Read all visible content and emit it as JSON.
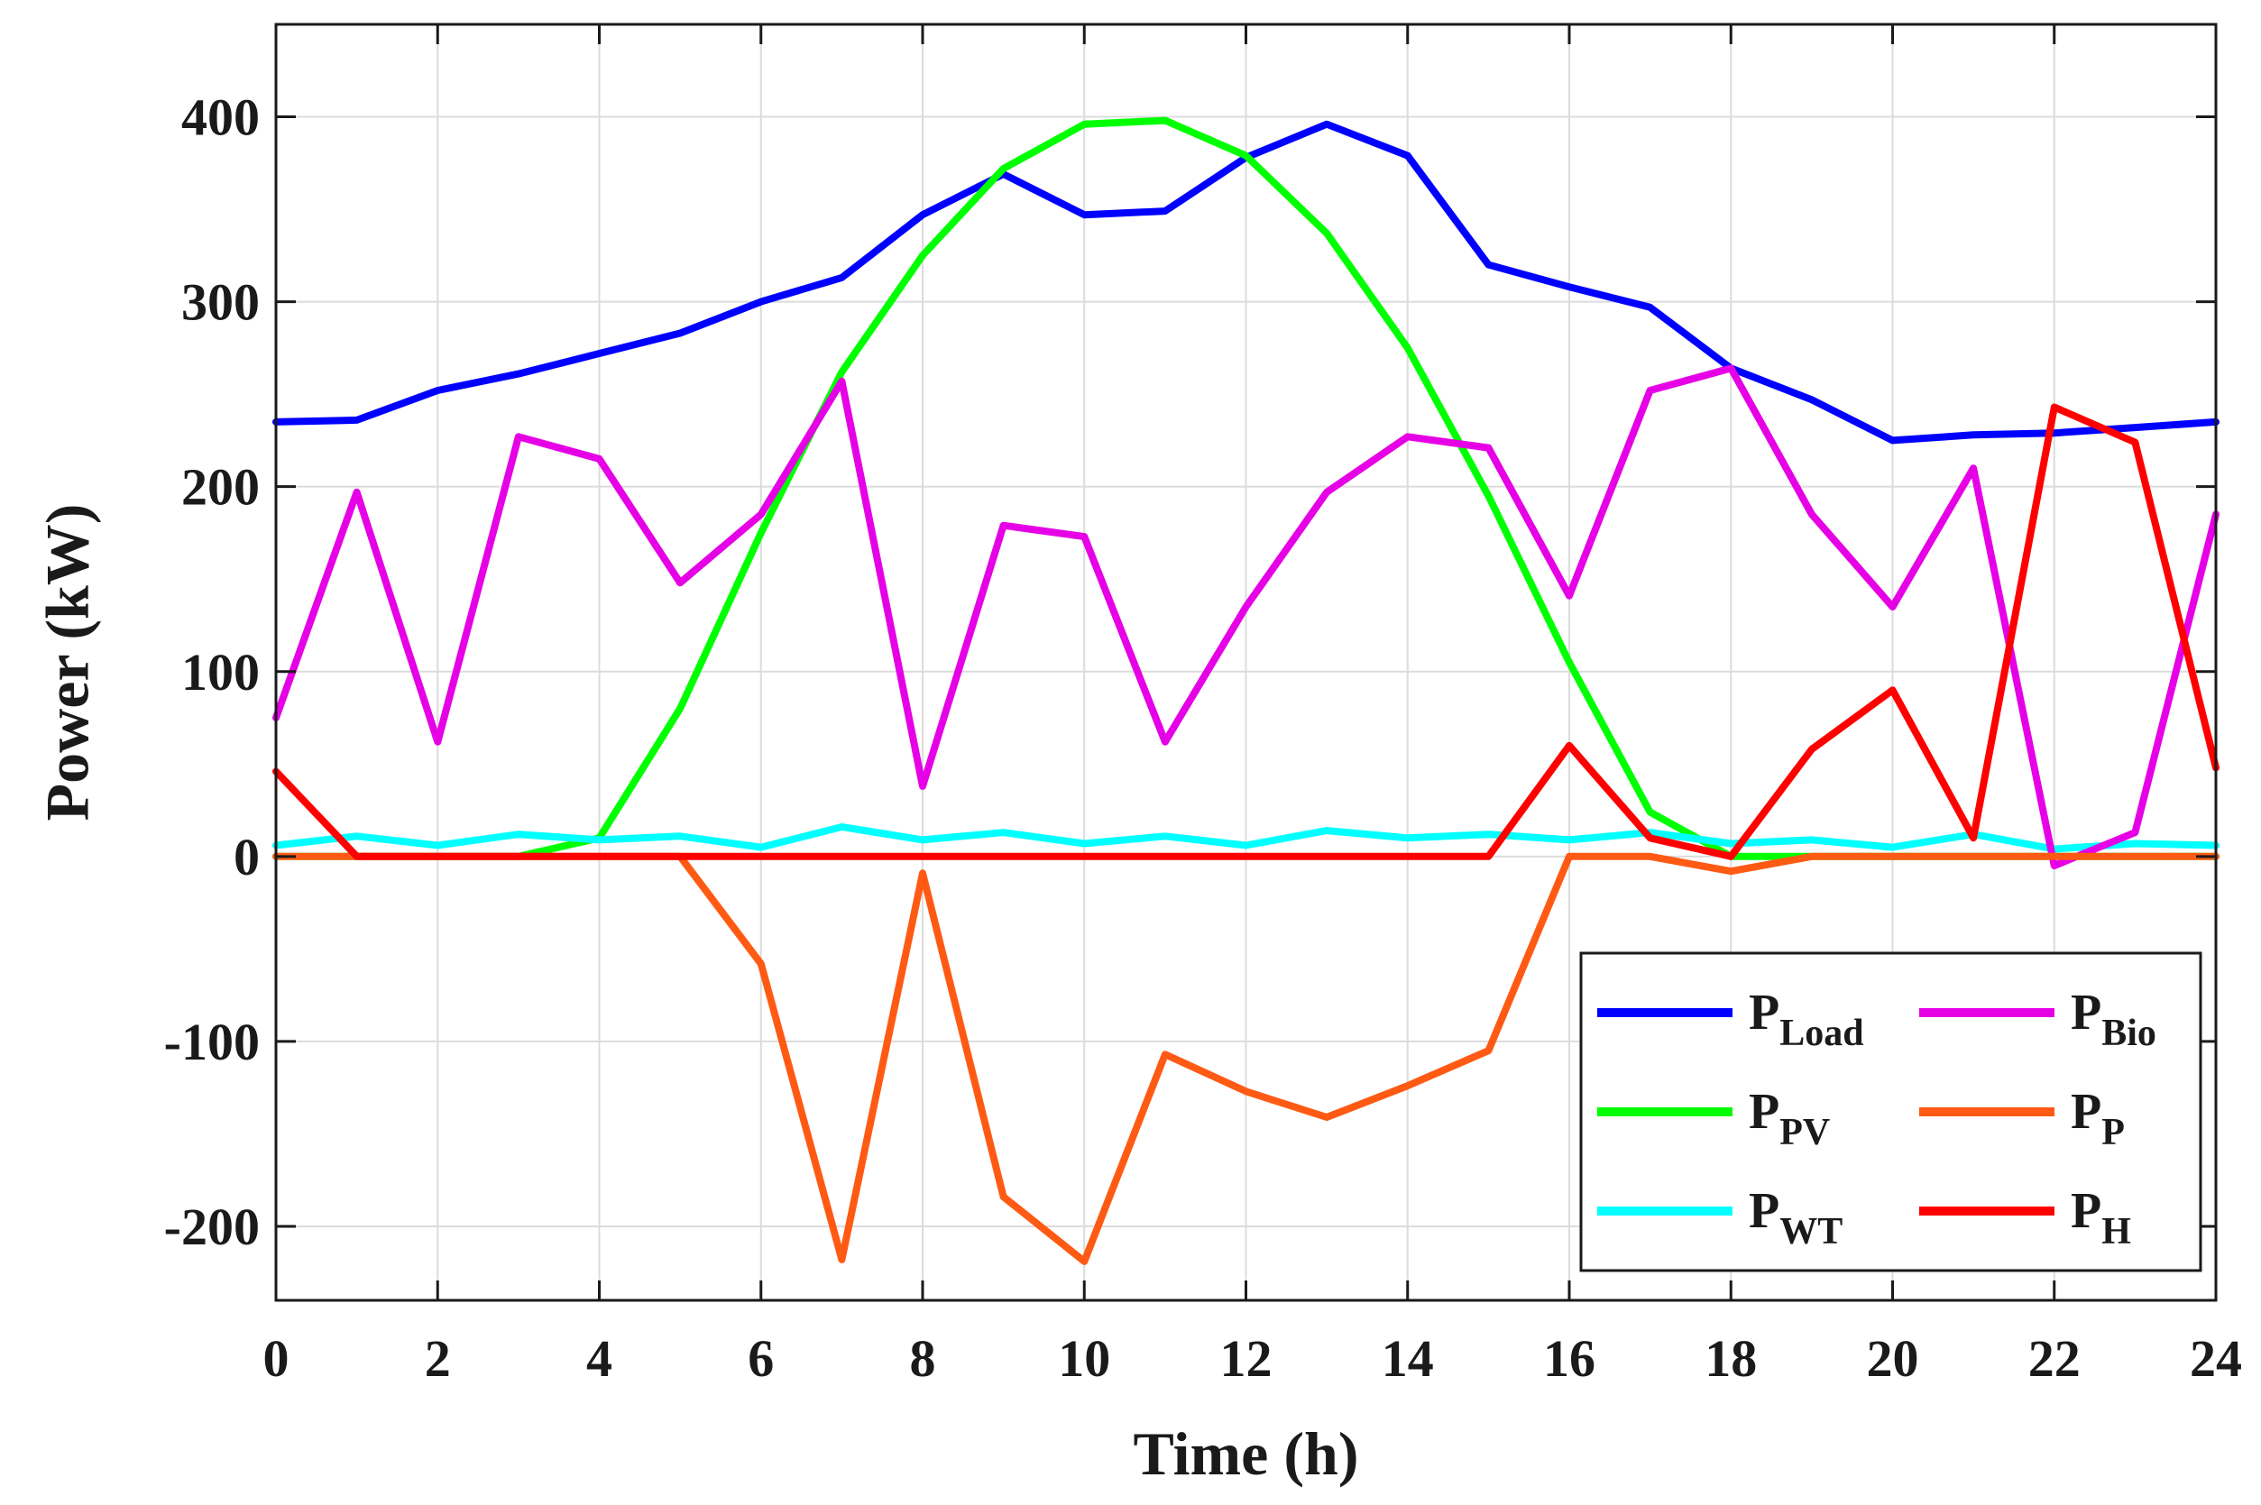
{
  "chart_data": {
    "type": "line",
    "title": "",
    "xlabel": "Time (h)",
    "ylabel": "Power (kW)",
    "xlim": [
      0,
      24
    ],
    "ylim": [
      -240,
      450
    ],
    "xticks": [
      0,
      2,
      4,
      6,
      8,
      10,
      12,
      14,
      16,
      18,
      20,
      22,
      24
    ],
    "yticks": [
      -200,
      -100,
      0,
      100,
      200,
      300,
      400
    ],
    "grid": true,
    "legend_position": "bottom-right",
    "x": [
      0,
      1,
      2,
      3,
      4,
      5,
      6,
      7,
      8,
      9,
      10,
      11,
      12,
      13,
      14,
      15,
      16,
      17,
      18,
      19,
      20,
      21,
      22,
      23,
      24
    ],
    "series": [
      {
        "name": "P",
        "subscript": "Load",
        "color": "#0000ff",
        "values": [
          235,
          236,
          252,
          261,
          272,
          283,
          300,
          313,
          347,
          369,
          347,
          349,
          378,
          396,
          379,
          320,
          308,
          297,
          264,
          247,
          225,
          228,
          229,
          232,
          235
        ]
      },
      {
        "name": "P",
        "subscript": "PV",
        "color": "#00ff00",
        "values": [
          0,
          0,
          0,
          0,
          10,
          80,
          175,
          262,
          325,
          372,
          396,
          398,
          379,
          337,
          275,
          195,
          105,
          24,
          0,
          0,
          0,
          0,
          0,
          0,
          0
        ]
      },
      {
        "name": "P",
        "subscript": "WT",
        "color": "#00ffff",
        "values": [
          6,
          11,
          6,
          12,
          9,
          11,
          5,
          16,
          9,
          13,
          7,
          11,
          6,
          14,
          10,
          12,
          9,
          13,
          7,
          9,
          5,
          12,
          4,
          7,
          6
        ]
      },
      {
        "name": "P",
        "subscript": "Bio",
        "color": "#e600e6",
        "values": [
          75,
          197,
          62,
          227,
          215,
          148,
          185,
          257,
          38,
          179,
          173,
          62,
          135,
          197,
          227,
          221,
          141,
          252,
          264,
          185,
          135,
          210,
          -5,
          13,
          185
        ]
      },
      {
        "name": "P",
        "subscript": "P",
        "color": "#ff5a14",
        "values": [
          0,
          0,
          0,
          0,
          0,
          0,
          -58,
          -218,
          -9,
          -184,
          -219,
          -107,
          -127,
          -141,
          -124,
          -105,
          0,
          0,
          -8,
          0,
          0,
          0,
          0,
          0,
          0
        ]
      },
      {
        "name": "P",
        "subscript": "H",
        "color": "#ff0000",
        "values": [
          46,
          0,
          0,
          0,
          0,
          0,
          0,
          0,
          0,
          0,
          0,
          0,
          0,
          0,
          0,
          0,
          60,
          10,
          0,
          58,
          90,
          10,
          243,
          224,
          48
        ]
      }
    ]
  }
}
